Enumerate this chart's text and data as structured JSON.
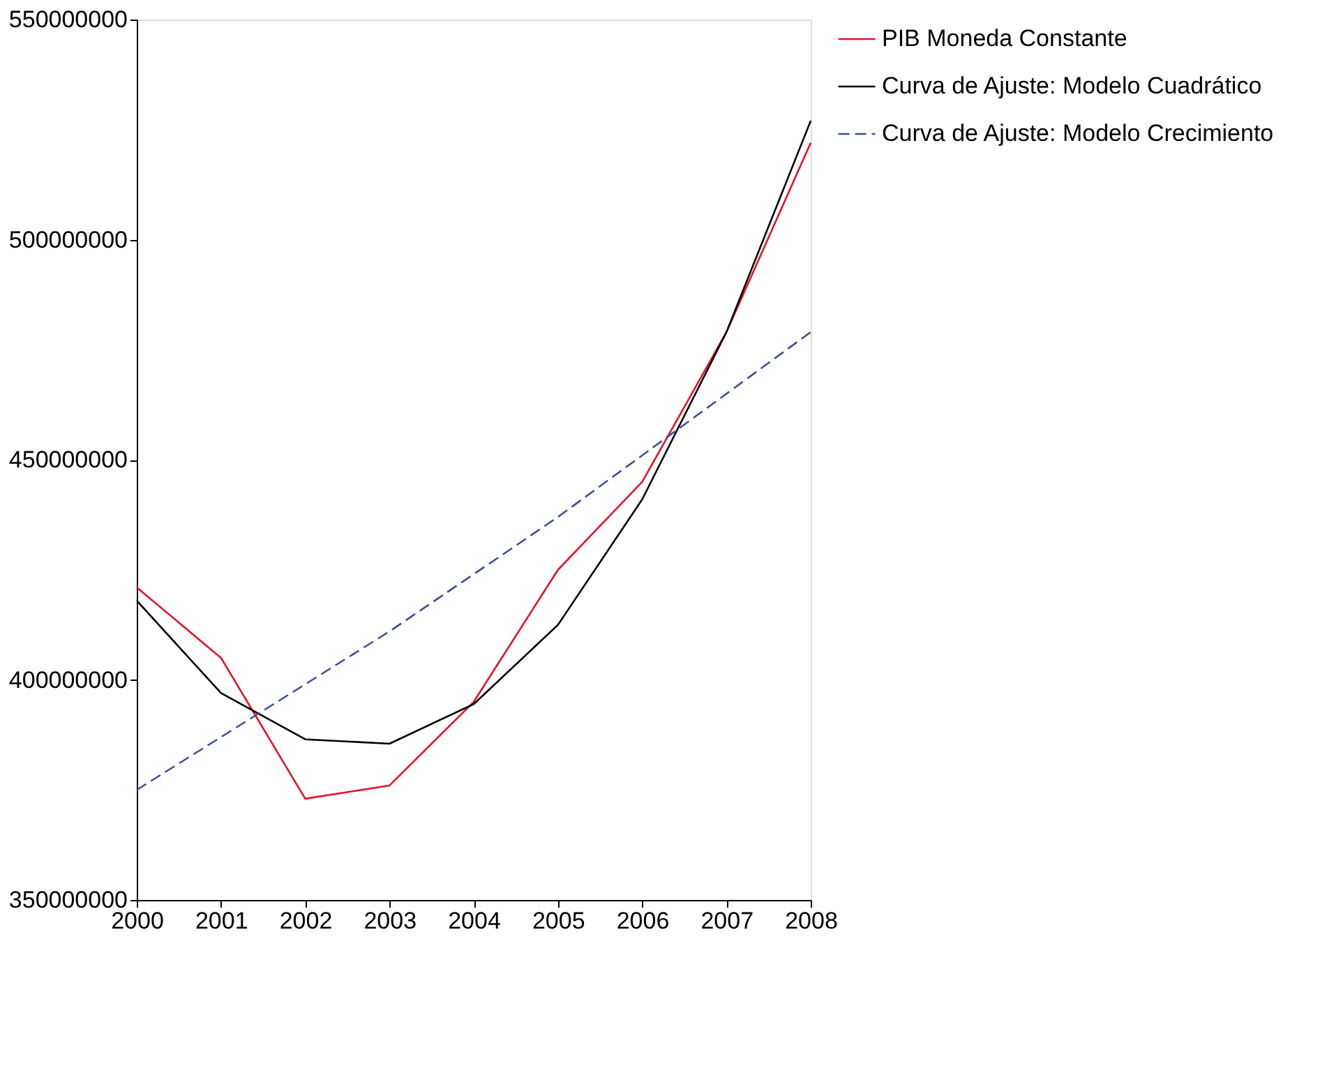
{
  "chart_data": {
    "type": "line",
    "x": [
      2000,
      2001,
      2002,
      2003,
      2004,
      2005,
      2006,
      2007,
      2008
    ],
    "series": [
      {
        "name": "PIB Moneda Constante",
        "color": "#e8102a",
        "values": [
          421000000,
          405000000,
          373000000,
          376000000,
          395000000,
          425000000,
          445000000,
          479000000,
          522000000
        ]
      },
      {
        "name": "Curva de Ajuste: Modelo Cuadrático",
        "color": "#000000",
        "values": [
          418000000,
          397000000,
          386500000,
          385500000,
          394500000,
          412500000,
          441000000,
          479000000,
          527000000
        ]
      },
      {
        "name": "Curva de Ajuste: Modelo Crecimiento",
        "color": "#3a4f9a",
        "line_style": "dashed",
        "values": [
          375000000,
          387000000,
          399000000,
          411000000,
          424000000,
          437000000,
          451000000,
          465000000,
          479000000
        ]
      }
    ],
    "xlim": [
      2000,
      2008
    ],
    "xticks": [
      2000,
      2001,
      2002,
      2003,
      2004,
      2005,
      2006,
      2007,
      2008
    ],
    "ylim": [
      350000000,
      550000000
    ],
    "yticks": [
      350000000,
      400000000,
      450000000,
      500000000,
      550000000
    ],
    "grid": false,
    "legend": "right",
    "marker": "none"
  }
}
